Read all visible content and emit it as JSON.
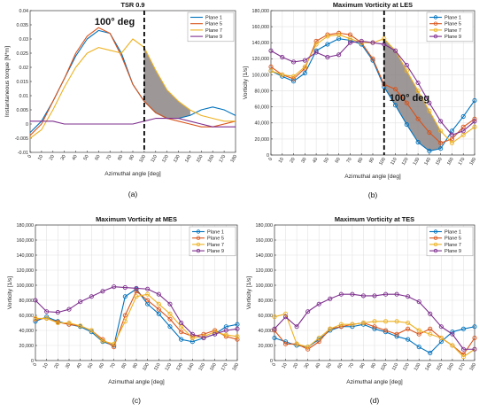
{
  "chart_data": [
    {
      "id": "a",
      "type": "line",
      "title": "TSR 0.9",
      "xlabel": "Azimuthal angle [deg]",
      "ylabel": "Instantaneous torque [N*m]",
      "caption": "(a)",
      "annotation": {
        "text": "100° deg",
        "x": 100
      },
      "xlim": [
        0,
        180
      ],
      "ylim": [
        -0.01,
        0.04
      ],
      "xticks": [
        0,
        10,
        20,
        30,
        40,
        50,
        60,
        70,
        80,
        90,
        100,
        110,
        120,
        130,
        140,
        150,
        160,
        170,
        180
      ],
      "yticks": [
        -0.01,
        -0.005,
        0,
        0.005,
        0.01,
        0.015,
        0.02,
        0.025,
        0.03,
        0.035,
        0.04
      ],
      "ytick_labels": [
        "-0.01",
        "-0.005",
        "0",
        "0.005",
        "0.01",
        "0.015",
        "0.02",
        "0.025",
        "0.03",
        "0.035",
        "0.04"
      ],
      "grid": false,
      "legend_position": "top-right",
      "markers": false,
      "shaded_region": {
        "x_from": 100,
        "x_to": 140,
        "between": [
          "Plane 1",
          "Plane 7"
        ]
      },
      "series": [
        {
          "name": "Plane 1",
          "color": "#0072BD",
          "x": [
            0,
            10,
            20,
            30,
            40,
            50,
            60,
            70,
            80,
            90,
            100,
            110,
            120,
            130,
            140,
            150,
            160,
            170,
            180
          ],
          "y": [
            -0.003,
            0.001,
            0.008,
            0.016,
            0.024,
            0.03,
            0.033,
            0.032,
            0.025,
            0.014,
            0.008,
            0.004,
            0.002,
            0.002,
            0.003,
            0.005,
            0.006,
            0.005,
            0.003
          ]
        },
        {
          "name": "Plane 5",
          "color": "#D95319",
          "x": [
            0,
            10,
            20,
            30,
            40,
            50,
            60,
            70,
            80,
            90,
            100,
            110,
            120,
            130,
            140,
            150,
            160,
            170,
            180
          ],
          "y": [
            -0.004,
            0.0,
            0.008,
            0.016,
            0.025,
            0.031,
            0.034,
            0.032,
            0.024,
            0.014,
            0.008,
            0.004,
            0.002,
            0.001,
            0.0,
            -0.001,
            -0.001,
            0.0,
            0.001
          ]
        },
        {
          "name": "Plane 7",
          "color": "#EDB120",
          "x": [
            0,
            10,
            20,
            30,
            40,
            50,
            60,
            70,
            80,
            90,
            100,
            110,
            120,
            130,
            140,
            150,
            160,
            170,
            180
          ],
          "y": [
            -0.005,
            -0.002,
            0.005,
            0.013,
            0.02,
            0.025,
            0.027,
            0.026,
            0.025,
            0.03,
            0.027,
            0.019,
            0.012,
            0.008,
            0.005,
            0.003,
            0.002,
            0.001,
            0.001
          ]
        },
        {
          "name": "Plane 9",
          "color": "#7E2F8E",
          "x": [
            0,
            10,
            20,
            30,
            40,
            50,
            60,
            70,
            80,
            90,
            100,
            110,
            120,
            130,
            140,
            150,
            160,
            170,
            180
          ],
          "y": [
            0.001,
            0.001,
            0.001,
            0.0,
            0.0,
            0.0,
            0.0,
            0.0,
            0.0,
            0.0,
            0.001,
            0.002,
            0.002,
            0.002,
            0.001,
            0.0,
            -0.001,
            -0.001,
            -0.001
          ]
        }
      ]
    },
    {
      "id": "b",
      "type": "line",
      "title": "Maximum Vorticity at LES",
      "xlabel": "Azimuthal angle [deg]",
      "ylabel": "Vorticity [1/s]",
      "caption": "(b)",
      "annotation": {
        "text": "100° deg",
        "x": 100
      },
      "xlim": [
        0,
        180
      ],
      "ylim": [
        0,
        180000
      ],
      "xticks": [
        0,
        10,
        20,
        30,
        40,
        50,
        60,
        70,
        80,
        90,
        100,
        110,
        120,
        130,
        140,
        150,
        160,
        170,
        180
      ],
      "yticks": [
        0,
        20000,
        40000,
        60000,
        80000,
        100000,
        120000,
        140000,
        160000,
        180000
      ],
      "ytick_labels": [
        "0",
        "20,000",
        "40,000",
        "60,000",
        "80,000",
        "100,000",
        "120,000",
        "140,000",
        "160,000",
        "180,000"
      ],
      "grid": true,
      "legend_position": "top-right",
      "markers": true,
      "shaded_region": {
        "x_from": 100,
        "x_to": 150,
        "between": [
          "Plane 1",
          "Plane 7"
        ]
      },
      "series": [
        {
          "name": "Plane 1",
          "color": "#0072BD",
          "x": [
            0,
            10,
            20,
            30,
            40,
            50,
            60,
            70,
            80,
            90,
            100,
            110,
            120,
            130,
            140,
            150,
            160,
            170,
            180
          ],
          "y": [
            105000,
            98000,
            92000,
            102000,
            130000,
            138000,
            145000,
            143000,
            138000,
            118000,
            85000,
            62000,
            38000,
            16000,
            5000,
            8000,
            30000,
            48000,
            68000
          ]
        },
        {
          "name": "Plane 5",
          "color": "#D95319",
          "x": [
            0,
            10,
            20,
            30,
            40,
            50,
            60,
            70,
            80,
            90,
            100,
            110,
            120,
            130,
            140,
            150,
            160,
            170,
            180
          ],
          "y": [
            110000,
            100000,
            95000,
            108000,
            142000,
            150000,
            152000,
            150000,
            140000,
            120000,
            88000,
            82000,
            65000,
            45000,
            28000,
            15000,
            20000,
            35000,
            45000
          ]
        },
        {
          "name": "Plane 7",
          "color": "#EDB120",
          "x": [
            0,
            10,
            20,
            30,
            40,
            50,
            60,
            70,
            80,
            90,
            100,
            110,
            120,
            130,
            140,
            150,
            160,
            170,
            180
          ],
          "y": [
            105000,
            100000,
            98000,
            110000,
            138000,
            148000,
            150000,
            145000,
            140000,
            140000,
            145000,
            130000,
            105000,
            80000,
            55000,
            30000,
            15000,
            25000,
            35000
          ]
        },
        {
          "name": "Plane 9",
          "color": "#7E2F8E",
          "x": [
            0,
            10,
            20,
            30,
            40,
            50,
            60,
            70,
            80,
            90,
            100,
            110,
            120,
            130,
            140,
            150,
            160,
            170,
            180
          ],
          "y": [
            130000,
            122000,
            116000,
            118000,
            128000,
            122000,
            125000,
            140000,
            142000,
            140000,
            138000,
            130000,
            112000,
            90000,
            65000,
            42000,
            25000,
            30000,
            42000
          ]
        }
      ]
    },
    {
      "id": "c",
      "type": "line",
      "title": "Maximum Vorticity at MES",
      "xlabel": "Azimuthal angle [deg]",
      "ylabel": "Vorticity [1/s]",
      "caption": "(c)",
      "xlim": [
        0,
        180
      ],
      "ylim": [
        0,
        180000
      ],
      "xticks": [
        0,
        10,
        20,
        30,
        40,
        50,
        60,
        70,
        80,
        90,
        100,
        110,
        120,
        130,
        140,
        150,
        160,
        170,
        180
      ],
      "yticks": [
        0,
        20000,
        40000,
        60000,
        80000,
        100000,
        120000,
        140000,
        160000,
        180000
      ],
      "ytick_labels": [
        "0",
        "20,000",
        "40,000",
        "60,000",
        "80,000",
        "100,000",
        "120,000",
        "140,000",
        "160,000",
        "180,000"
      ],
      "grid": true,
      "legend_position": "top-right",
      "markers": true,
      "series": [
        {
          "name": "Plane 1",
          "color": "#0072BD",
          "x": [
            0,
            10,
            20,
            30,
            40,
            50,
            60,
            70,
            80,
            90,
            100,
            110,
            120,
            130,
            140,
            150,
            160,
            170,
            180
          ],
          "y": [
            52000,
            58000,
            52000,
            48000,
            45000,
            38000,
            25000,
            20000,
            85000,
            95000,
            75000,
            62000,
            45000,
            28000,
            25000,
            30000,
            35000,
            45000,
            48000
          ]
        },
        {
          "name": "Plane 5",
          "color": "#D95319",
          "x": [
            0,
            10,
            20,
            30,
            40,
            50,
            60,
            70,
            80,
            90,
            100,
            110,
            120,
            130,
            140,
            150,
            160,
            170,
            180
          ],
          "y": [
            55000,
            56000,
            51000,
            48000,
            46000,
            40000,
            28000,
            18000,
            60000,
            92000,
            80000,
            68000,
            55000,
            38000,
            32000,
            35000,
            40000,
            32000,
            28000
          ]
        },
        {
          "name": "Plane 7",
          "color": "#EDB120",
          "x": [
            0,
            10,
            20,
            30,
            40,
            50,
            60,
            70,
            80,
            90,
            100,
            110,
            120,
            130,
            140,
            150,
            160,
            170,
            180
          ],
          "y": [
            56000,
            56000,
            50000,
            50000,
            46000,
            40000,
            26000,
            22000,
            52000,
            85000,
            88000,
            75000,
            62000,
            45000,
            30000,
            32000,
            38000,
            34000,
            32000
          ]
        },
        {
          "name": "Plane 9",
          "color": "#7E2F8E",
          "x": [
            0,
            10,
            20,
            30,
            40,
            50,
            60,
            70,
            80,
            90,
            100,
            110,
            120,
            130,
            140,
            150,
            160,
            170,
            180
          ],
          "y": [
            80000,
            65000,
            64000,
            68000,
            78000,
            85000,
            92000,
            98000,
            97000,
            96000,
            95000,
            88000,
            75000,
            50000,
            35000,
            30000,
            35000,
            40000,
            42000
          ]
        }
      ]
    },
    {
      "id": "d",
      "type": "line",
      "title": "Maximum Vorticity at TES",
      "xlabel": "Azimuthal angle [deg]",
      "ylabel": "Vorticity [1/s]",
      "caption": "(d)",
      "xlim": [
        0,
        180
      ],
      "ylim": [
        0,
        180000
      ],
      "xticks": [
        0,
        10,
        20,
        30,
        40,
        50,
        60,
        70,
        80,
        90,
        100,
        110,
        120,
        130,
        140,
        150,
        160,
        170,
        180
      ],
      "yticks": [
        0,
        20000,
        40000,
        60000,
        80000,
        100000,
        120000,
        140000,
        160000,
        180000
      ],
      "ytick_labels": [
        "0",
        "20,000",
        "40,000",
        "60,000",
        "80,000",
        "100,000",
        "120,000",
        "140,000",
        "160,000",
        "180,000"
      ],
      "grid": true,
      "legend_position": "top-right",
      "markers": true,
      "series": [
        {
          "name": "Plane 1",
          "color": "#0072BD",
          "x": [
            0,
            10,
            20,
            30,
            40,
            50,
            60,
            70,
            80,
            90,
            100,
            110,
            120,
            130,
            140,
            150,
            160,
            170,
            180
          ],
          "y": [
            30000,
            25000,
            20000,
            18000,
            28000,
            40000,
            45000,
            45000,
            48000,
            42000,
            38000,
            32000,
            28000,
            18000,
            10000,
            25000,
            38000,
            42000,
            45000
          ]
        },
        {
          "name": "Plane 5",
          "color": "#D95319",
          "x": [
            0,
            10,
            20,
            30,
            40,
            50,
            60,
            70,
            80,
            90,
            100,
            110,
            120,
            130,
            140,
            150,
            160,
            170,
            180
          ],
          "y": [
            40000,
            22000,
            22000,
            15000,
            25000,
            42000,
            45000,
            48000,
            50000,
            45000,
            40000,
            35000,
            42000,
            35000,
            42000,
            30000,
            20000,
            8000,
            30000
          ]
        },
        {
          "name": "Plane 7",
          "color": "#EDB120",
          "x": [
            0,
            10,
            20,
            30,
            40,
            50,
            60,
            70,
            80,
            90,
            100,
            110,
            120,
            130,
            140,
            150,
            160,
            170,
            180
          ],
          "y": [
            58000,
            62000,
            22000,
            18000,
            30000,
            42000,
            48000,
            48000,
            50000,
            52000,
            52000,
            52000,
            50000,
            40000,
            35000,
            30000,
            20000,
            5000,
            15000
          ]
        },
        {
          "name": "Plane 9",
          "color": "#7E2F8E",
          "x": [
            0,
            10,
            20,
            30,
            40,
            50,
            60,
            70,
            80,
            90,
            100,
            110,
            120,
            130,
            140,
            150,
            160,
            170,
            180
          ],
          "y": [
            42000,
            58000,
            45000,
            65000,
            75000,
            82000,
            88000,
            88000,
            86000,
            86000,
            88000,
            88000,
            85000,
            78000,
            62000,
            45000,
            35000,
            15000,
            15000
          ]
        }
      ]
    }
  ]
}
